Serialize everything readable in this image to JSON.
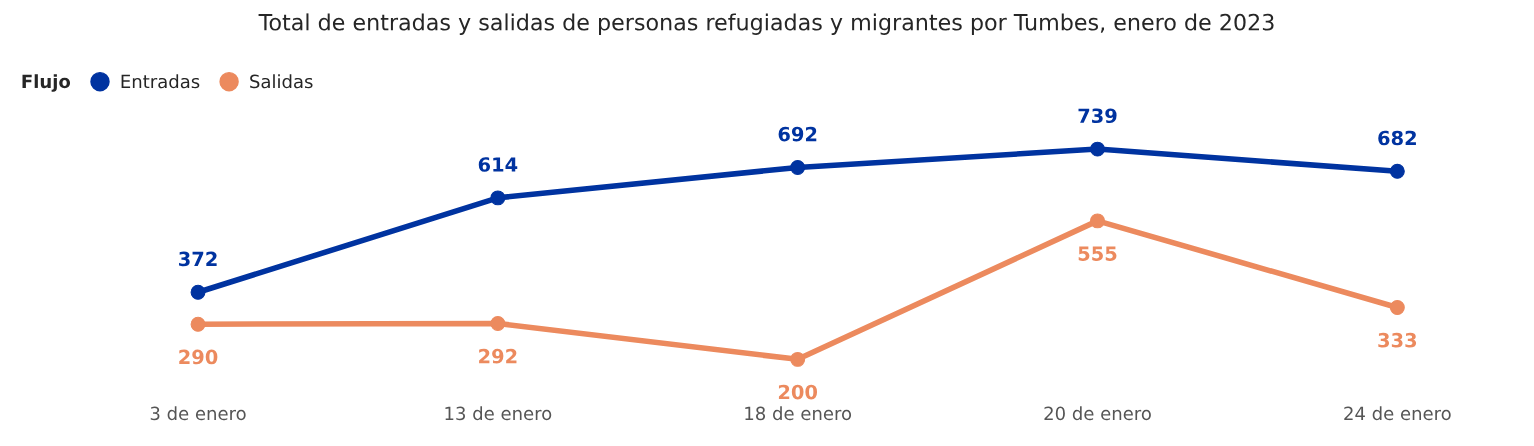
{
  "chart_data": {
    "type": "line",
    "title": "Total de entradas y salidas de personas refugiadas y migrantes por Tumbes, enero de 2023",
    "legend_title": "Flujo",
    "categories": [
      "3 de enero",
      "13 de enero",
      "18 de enero",
      "20 de enero",
      "24 de enero"
    ],
    "series": [
      {
        "name": "Entradas",
        "color": "#0033a0",
        "values": [
          372,
          614,
          692,
          739,
          682
        ]
      },
      {
        "name": "Salidas",
        "color": "#ec8a5e",
        "values": [
          290,
          292,
          200,
          555,
          333
        ]
      }
    ],
    "data_labels": true,
    "marker": "circle",
    "line_style": "solid",
    "legend": "top left",
    "grid": false,
    "tick_labels": "x"
  }
}
